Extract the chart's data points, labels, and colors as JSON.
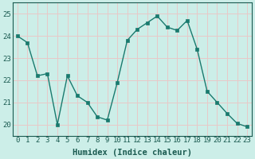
{
  "x": [
    0,
    1,
    2,
    3,
    4,
    5,
    6,
    7,
    8,
    9,
    10,
    11,
    12,
    13,
    14,
    15,
    16,
    17,
    18,
    19,
    20,
    21,
    22,
    23
  ],
  "y": [
    24.0,
    23.7,
    22.2,
    22.3,
    20.0,
    22.2,
    21.3,
    21.0,
    20.35,
    20.2,
    21.9,
    23.8,
    24.3,
    24.6,
    24.9,
    24.4,
    24.25,
    24.7,
    23.4,
    21.5,
    21.0,
    20.5,
    20.05,
    19.9
  ],
  "line_color": "#1a7a6e",
  "marker_color": "#1a7a6e",
  "bg_color": "#cceee8",
  "plot_bg_color": "#cceee8",
  "grid_color": "#e8c8c8",
  "xlabel": "Humidex (Indice chaleur)",
  "ylim": [
    19.5,
    25.5
  ],
  "xlim": [
    -0.5,
    23.5
  ],
  "yticks": [
    20,
    21,
    22,
    23,
    24,
    25
  ],
  "xticks": [
    0,
    1,
    2,
    3,
    4,
    5,
    6,
    7,
    8,
    9,
    10,
    11,
    12,
    13,
    14,
    15,
    16,
    17,
    18,
    19,
    20,
    21,
    22,
    23
  ],
  "xtick_labels": [
    "0",
    "1",
    "2",
    "3",
    "4",
    "5",
    "6",
    "7",
    "8",
    "9",
    "10",
    "11",
    "12",
    "13",
    "14",
    "15",
    "16",
    "17",
    "18",
    "19",
    "20",
    "21",
    "22",
    "23"
  ],
  "font_color": "#1a5a50",
  "tick_label_fontsize": 6.5,
  "xlabel_fontsize": 7.5,
  "line_width": 1.0,
  "marker_size": 2.5
}
